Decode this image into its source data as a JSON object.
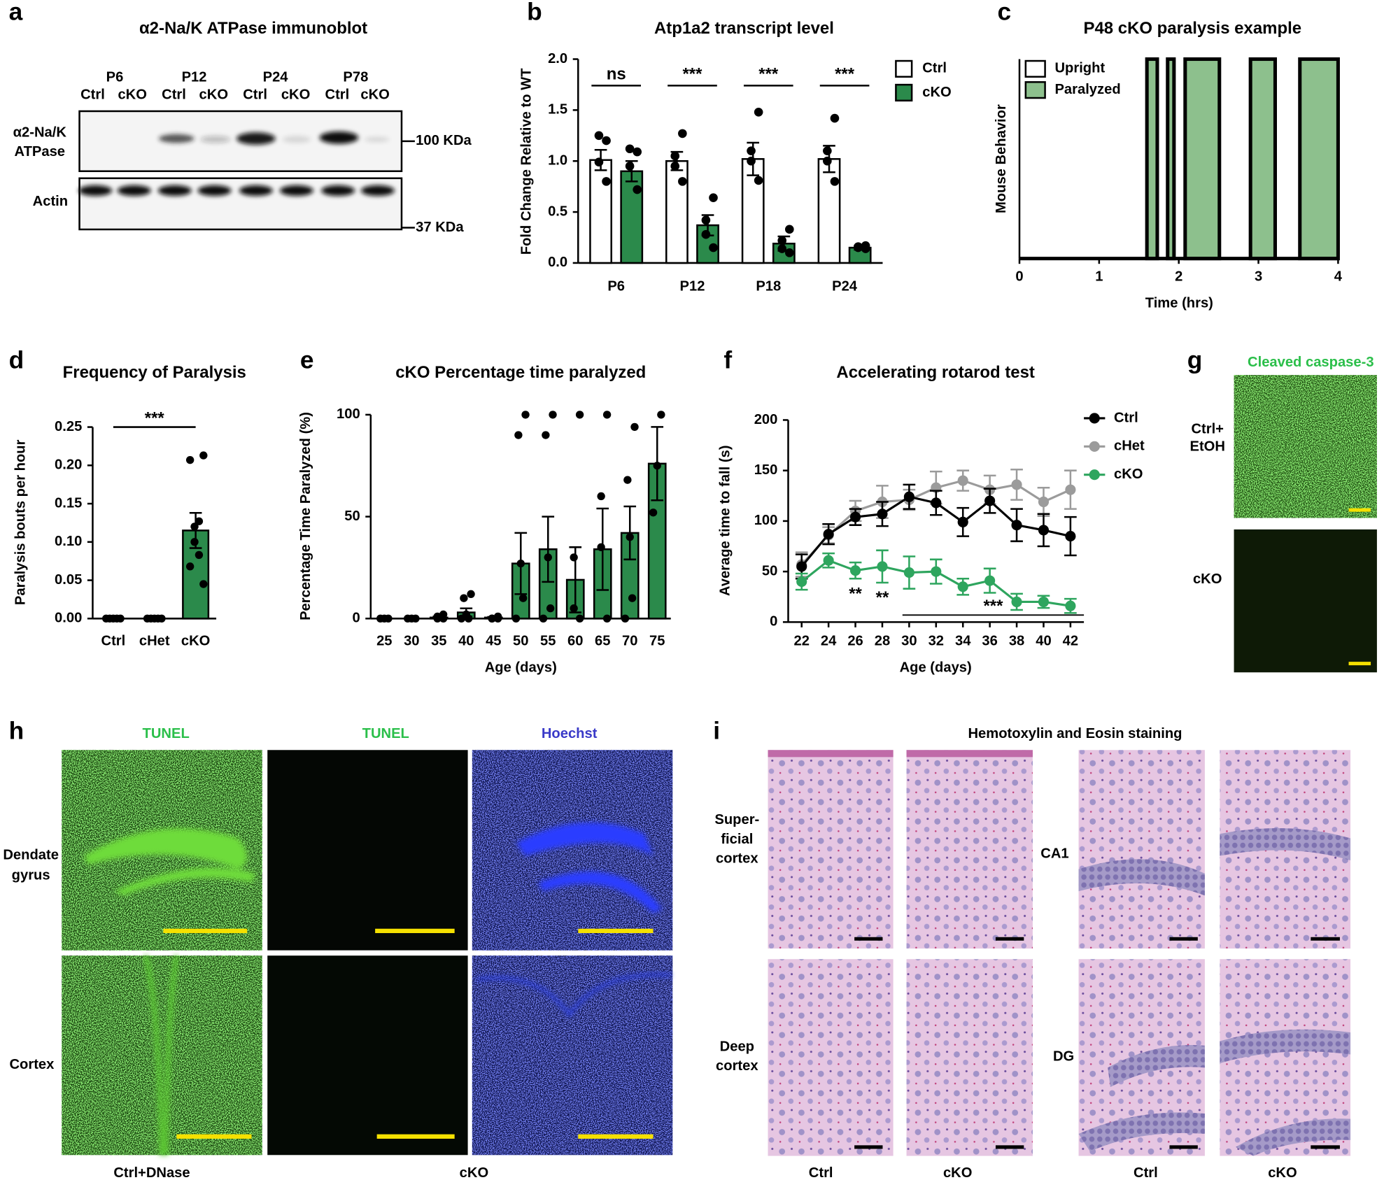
{
  "chart_data": [
    {
      "type": "bar",
      "label": "b",
      "title": "Atp1a2 transcript level",
      "ylabel": "Fold Change Relative to WT",
      "categories": [
        "P6",
        "P12",
        "P18",
        "P24"
      ],
      "series": [
        {
          "name": "Ctrl",
          "color": "#ffffff",
          "values": [
            1.01,
            1.0,
            1.02,
            1.02
          ],
          "errors": [
            0.1,
            0.09,
            0.16,
            0.13
          ],
          "points": [
            [
              1.2,
              1.25,
              0.99,
              0.8
            ],
            [
              1.27,
              1.05,
              0.95,
              0.8
            ],
            [
              1.48,
              1.1,
              1.0,
              0.81
            ],
            [
              1.42,
              1.1,
              1.0,
              0.8
            ]
          ]
        },
        {
          "name": "cKO",
          "color": "#2b8a4b",
          "values": [
            0.9,
            0.37,
            0.19,
            0.15
          ],
          "errors": [
            0.1,
            0.1,
            0.07,
            0.02
          ],
          "points": [
            [
              1.09,
              1.12,
              0.95,
              0.72
            ],
            [
              0.64,
              0.42,
              0.28,
              0.15
            ],
            [
              0.33,
              0.22,
              0.14,
              0.1
            ],
            [
              0.17,
              0.16,
              0.15,
              0.14
            ]
          ]
        }
      ],
      "ylim": [
        0,
        2
      ],
      "yticks": [
        {
          "value": 0,
          "label": "0.0"
        },
        0.5,
        {
          "value": 1,
          "label": "1.0"
        },
        1.5,
        {
          "value": 2,
          "label": "2.0"
        }
      ],
      "significance": [
        "ns",
        "***",
        "***",
        "***"
      ],
      "legend": "upper right"
    },
    {
      "type": "timeline",
      "label": "c",
      "title": "P48 cKO paralysis example",
      "ylabel": "Mouse Behavior",
      "xlabel": "Time (hrs)",
      "xlim": [
        0,
        4
      ],
      "xticks": [
        0,
        1,
        2,
        3,
        4
      ],
      "series": [
        {
          "name": "Upright",
          "color": "#ffffff"
        },
        {
          "name": "Paralyzed",
          "color": "#8dc08d",
          "intervals": [
            [
              1.6,
              1.73
            ],
            [
              1.86,
              1.94
            ],
            [
              2.08,
              2.51
            ],
            [
              2.9,
              3.21
            ],
            [
              3.52,
              4
            ]
          ]
        }
      ],
      "legend": "upper left"
    },
    {
      "type": "bar",
      "label": "d",
      "title": "Frequency of Paralysis",
      "ylabel": "Paralysis bouts per hour",
      "categories": [
        "Ctrl",
        "cHet",
        "cKO"
      ],
      "values": [
        0,
        0,
        0.115
      ],
      "errors": [
        0,
        0,
        0.023
      ],
      "points": [
        [
          0,
          0,
          0,
          0,
          0
        ],
        [
          0,
          0,
          0,
          0,
          0
        ],
        [
          0.213,
          0.207,
          0.127,
          0.12,
          0.1,
          0.083,
          0.068,
          0.045
        ]
      ],
      "color": "#2b8a4b",
      "ylim": [
        0,
        0.25
      ],
      "yticks": [
        {
          "value": 0,
          "label": "0.00"
        },
        0.05,
        {
          "value": 0.1,
          "label": "0.10"
        },
        0.15,
        {
          "value": 0.2,
          "label": "0.20"
        },
        0.25
      ],
      "significance": "***"
    },
    {
      "type": "bar",
      "label": "e",
      "title": "cKO Percentage time paralyzed",
      "ylabel": "Percentage Time Paralyzed (%)",
      "xlabel": "Age (days)",
      "categories": [
        "25",
        "30",
        "35",
        "40",
        "45",
        "50",
        "55",
        "60",
        "65",
        "70",
        "75"
      ],
      "values": [
        0,
        0,
        0.5,
        3,
        0.5,
        27,
        34,
        19,
        34,
        42,
        76
      ],
      "errors": [
        0,
        0,
        0.5,
        2,
        0.3,
        15,
        16,
        16,
        20,
        13,
        18
      ],
      "points": [
        [
          0,
          0,
          0
        ],
        [
          0,
          0,
          0
        ],
        [
          2,
          1,
          0,
          0
        ],
        [
          12,
          10,
          2,
          0,
          0
        ],
        [
          1,
          0,
          0,
          0
        ],
        [
          100,
          90,
          27,
          10,
          0
        ],
        [
          100,
          90,
          30,
          5,
          0
        ],
        [
          100,
          30,
          5,
          0
        ],
        [
          100,
          60,
          35,
          0
        ],
        [
          94,
          68,
          40,
          10,
          0
        ],
        [
          100,
          75,
          52
        ]
      ],
      "color": "#2b8a4b",
      "ylim": [
        0,
        100
      ],
      "yticks": [
        0,
        50,
        100
      ]
    },
    {
      "type": "line",
      "label": "f",
      "title": "Accelerating rotarod test",
      "ylabel": "Average time to fall (s)",
      "xlabel": "Age (days)",
      "x": [
        22,
        24,
        26,
        28,
        30,
        32,
        34,
        36,
        38,
        40,
        42
      ],
      "xlim": [
        21,
        43
      ],
      "xticks": [
        22,
        24,
        26,
        28,
        30,
        32,
        34,
        36,
        38,
        40,
        42
      ],
      "ylim": [
        0,
        200
      ],
      "yticks": [
        0,
        50,
        100,
        150,
        200
      ],
      "series": [
        {
          "name": "Ctrl",
          "color": "#000000",
          "values": [
            55,
            87,
            104,
            107,
            124,
            118,
            99,
            120,
            96,
            91,
            85
          ],
          "errors": [
            12,
            10,
            8,
            12,
            12,
            12,
            14,
            12,
            16,
            16,
            19
          ]
        },
        {
          "name": "cHet",
          "color": "#9b9b9b",
          "values": [
            57,
            86,
            110,
            119,
            121,
            133,
            140,
            131,
            136,
            119,
            131
          ],
          "errors": [
            12,
            8,
            10,
            16,
            10,
            16,
            10,
            14,
            15,
            14,
            19
          ]
        },
        {
          "name": "cKO",
          "color": "#2ea55e",
          "values": [
            40,
            61,
            51,
            55,
            49,
            50,
            35,
            41,
            20,
            20,
            16
          ],
          "errors": [
            8,
            7,
            8,
            16,
            16,
            12,
            8,
            12,
            8,
            6,
            7
          ]
        }
      ],
      "significance": [
        null,
        null,
        "**",
        "**",
        null,
        null,
        null,
        null,
        null,
        null,
        null
      ],
      "span": {
        "text": "***",
        "x": [
          29.5,
          43
        ]
      },
      "legend": "upper right"
    }
  ],
  "panel_a": {
    "label": "a",
    "title": "α2-Na/K ATPase immunoblot",
    "groups": [
      "P6",
      "P12",
      "P24",
      "P78"
    ],
    "lanes": [
      "Ctrl",
      "cKO",
      "Ctrl",
      "cKO",
      "Ctrl",
      "cKO",
      "Ctrl",
      "cKO"
    ],
    "rows": [
      [
        "α2-Na/K",
        "ATPase"
      ],
      [
        "Actin"
      ]
    ],
    "markers": [
      "100 KDa",
      "37 KDa"
    ]
  },
  "panel_g": {
    "label": "g",
    "title": "Cleaved caspase-3",
    "rows": [
      [
        "Ctrl+",
        "EtOH"
      ],
      [
        "cKO"
      ]
    ]
  },
  "panel_h": {
    "label": "h",
    "columns": [
      "TUNEL",
      "TUNEL",
      "Hoechst"
    ],
    "rows": [
      [
        "Dendate",
        "gyrus"
      ],
      [
        "Cortex"
      ]
    ],
    "groups": [
      "Ctrl+DNase",
      "cKO"
    ]
  },
  "panel_i": {
    "label": "i",
    "title": "Hemotoxylin and Eosin staining",
    "rows_left": [
      [
        "Super-",
        "ficial",
        "cortex"
      ],
      [
        "Deep",
        "cortex"
      ]
    ],
    "rows_right": [
      [
        "CA1"
      ],
      [
        "DG"
      ]
    ],
    "columns": [
      "Ctrl",
      "cKO",
      "Ctrl",
      "cKO"
    ]
  }
}
